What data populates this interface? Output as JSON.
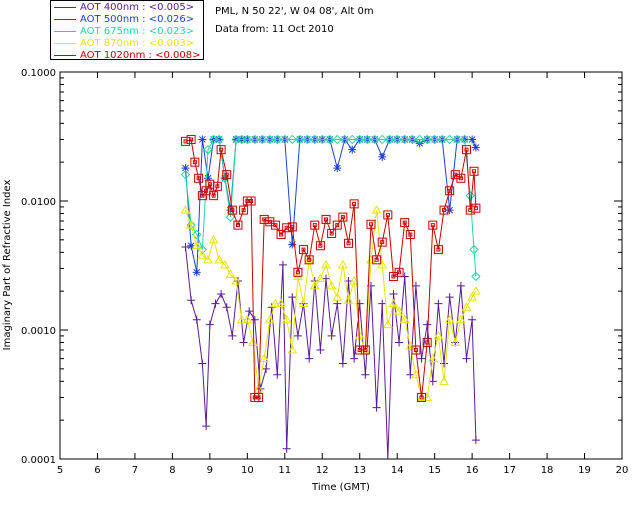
{
  "info": {
    "location": "PML, N 50 22', W 04 08', Alt 0m",
    "date": "Data from: 11 Oct 2010"
  },
  "legend": [
    {
      "label": "AOT  400nm : <0.005>",
      "color": "#5a1a9a"
    },
    {
      "label": "AOT  500nm : <0.026>",
      "color": "#1c3fd8"
    },
    {
      "label": "AOT  675nm : <0.023>",
      "color": "#22d6a0"
    },
    {
      "label": "AOT  870nm : <0.003>",
      "color": "#e6e600"
    },
    {
      "label": "AOT 1020nm : <0.008>",
      "color": "#cc0000"
    }
  ],
  "chart_data": {
    "type": "line",
    "title": "",
    "xlabel": "Time (GMT)",
    "ylabel": "Imaginary Part of Refractive Index",
    "xlim": [
      5,
      20
    ],
    "ylim": [
      0.0001,
      0.1
    ],
    "yscale": "log",
    "xticks": [
      "5",
      "6",
      "7",
      "8",
      "9",
      "10",
      "11",
      "12",
      "13",
      "14",
      "15",
      "16",
      "17",
      "18",
      "19",
      "20"
    ],
    "yticks": [
      "0.0001",
      "0.0010",
      "0.0100",
      "0.1000"
    ],
    "series": [
      {
        "name": "AOT 400nm",
        "color": "#5a1a9a",
        "marker": "plus",
        "x": [
          8.35,
          8.5,
          8.65,
          8.8,
          8.9,
          9.0,
          9.15,
          9.3,
          9.45,
          9.6,
          9.75,
          9.9,
          10.05,
          10.2,
          10.35,
          10.5,
          10.65,
          10.8,
          10.95,
          11.05,
          11.2,
          11.35,
          11.5,
          11.65,
          11.8,
          11.95,
          12.1,
          12.25,
          12.4,
          12.55,
          12.7,
          12.85,
          13.0,
          13.15,
          13.3,
          13.45,
          13.6,
          13.75,
          13.9,
          14.05,
          14.2,
          14.35,
          14.5,
          14.65,
          14.8,
          14.95,
          15.1,
          15.25,
          15.4,
          15.55,
          15.7,
          15.85,
          16.0,
          16.1
        ],
        "y": [
          0.0044,
          0.0017,
          0.0012,
          0.00055,
          0.00018,
          0.0011,
          0.0016,
          0.0019,
          0.0015,
          0.0009,
          0.0024,
          0.0008,
          0.0014,
          0.0012,
          0.00035,
          0.0005,
          0.0015,
          0.00045,
          0.0032,
          0.00012,
          0.0018,
          0.0009,
          0.0016,
          0.0006,
          0.0024,
          0.0007,
          0.0025,
          0.0009,
          0.0016,
          0.00055,
          0.0024,
          0.0006,
          0.0016,
          0.00045,
          0.0022,
          0.00025,
          0.0016,
          8e-05,
          0.0019,
          0.0008,
          0.0026,
          0.00045,
          0.0022,
          0.0006,
          0.0011,
          0.0004,
          0.0016,
          0.00055,
          0.0018,
          0.0008,
          0.0022,
          0.0006,
          0.0012,
          0.00014
        ]
      },
      {
        "name": "AOT 500nm",
        "color": "#1c3fd8",
        "marker": "asterisk",
        "x": [
          8.35,
          8.5,
          8.65,
          8.8,
          8.95,
          9.1,
          9.25,
          9.4,
          9.55,
          9.7,
          9.85,
          10.0,
          10.2,
          10.4,
          10.6,
          10.8,
          11.0,
          11.2,
          11.4,
          11.6,
          11.8,
          12.0,
          12.2,
          12.4,
          12.6,
          12.8,
          13.0,
          13.2,
          13.4,
          13.6,
          13.8,
          14.0,
          14.2,
          14.4,
          14.6,
          14.8,
          15.0,
          15.2,
          15.4,
          15.6,
          15.8,
          16.0,
          16.1
        ],
        "y": [
          0.018,
          0.0045,
          0.0028,
          0.03,
          0.015,
          0.03,
          0.03,
          0.015,
          0.0085,
          0.03,
          0.03,
          0.03,
          0.03,
          0.03,
          0.03,
          0.03,
          0.03,
          0.0046,
          0.03,
          0.03,
          0.03,
          0.03,
          0.03,
          0.018,
          0.03,
          0.025,
          0.03,
          0.03,
          0.03,
          0.022,
          0.03,
          0.03,
          0.03,
          0.03,
          0.028,
          0.03,
          0.03,
          0.03,
          0.0085,
          0.03,
          0.03,
          0.03,
          0.026
        ]
      },
      {
        "name": "AOT 675nm",
        "color": "#22d6a0",
        "marker": "diamond",
        "x": [
          8.35,
          8.5,
          8.65,
          8.8,
          8.95,
          9.1,
          9.25,
          9.4,
          9.55,
          9.7,
          9.85,
          10.0,
          10.2,
          10.4,
          10.6,
          10.8,
          11.0,
          11.2,
          11.4,
          11.6,
          11.8,
          12.0,
          12.2,
          12.4,
          12.6,
          12.8,
          13.0,
          13.2,
          13.4,
          13.6,
          13.8,
          14.0,
          14.2,
          14.4,
          14.6,
          14.8,
          15.0,
          15.2,
          15.4,
          15.6,
          15.8,
          15.95,
          16.05,
          16.1
        ],
        "y": [
          0.016,
          0.0065,
          0.0055,
          0.0042,
          0.025,
          0.03,
          0.03,
          0.015,
          0.0075,
          0.03,
          0.03,
          0.03,
          0.03,
          0.03,
          0.03,
          0.03,
          0.03,
          0.03,
          0.03,
          0.03,
          0.03,
          0.03,
          0.03,
          0.03,
          0.03,
          0.03,
          0.03,
          0.03,
          0.03,
          0.03,
          0.03,
          0.03,
          0.03,
          0.03,
          0.03,
          0.03,
          0.03,
          0.03,
          0.03,
          0.03,
          0.03,
          0.011,
          0.0042,
          0.0026
        ]
      },
      {
        "name": "AOT 870nm",
        "color": "#e6e600",
        "marker": "triangle",
        "x": [
          8.35,
          8.5,
          8.65,
          8.8,
          8.95,
          9.1,
          9.25,
          9.4,
          9.55,
          9.7,
          9.85,
          10.0,
          10.15,
          10.3,
          10.45,
          10.6,
          10.75,
          10.9,
          11.05,
          11.2,
          11.35,
          11.5,
          11.65,
          11.8,
          11.95,
          12.1,
          12.25,
          12.4,
          12.55,
          12.7,
          12.85,
          13.0,
          13.15,
          13.3,
          13.45,
          13.6,
          13.75,
          13.9,
          14.05,
          14.2,
          14.35,
          14.5,
          14.65,
          14.8,
          14.95,
          15.1,
          15.25,
          15.4,
          15.55,
          15.7,
          15.85,
          16.0,
          16.1
        ],
        "y": [
          0.0085,
          0.0065,
          0.0045,
          0.0038,
          0.0035,
          0.005,
          0.0035,
          0.0032,
          0.0027,
          0.0024,
          0.0012,
          0.0012,
          0.0008,
          0.00035,
          0.0006,
          0.0012,
          0.0016,
          0.0016,
          0.0012,
          0.0007,
          0.0026,
          0.0016,
          0.0035,
          0.0022,
          0.0025,
          0.0032,
          0.0022,
          0.0018,
          0.0032,
          0.0017,
          0.0024,
          0.0009,
          0.0007,
          0.0035,
          0.0085,
          0.0032,
          0.0011,
          0.0016,
          0.0014,
          0.0012,
          0.00075,
          0.00045,
          0.0003,
          0.0003,
          0.0006,
          0.0009,
          0.0004,
          0.0012,
          0.0008,
          0.0012,
          0.0015,
          0.0018,
          0.002
        ]
      },
      {
        "name": "AOT 1020nm",
        "color": "#cc0000",
        "marker": "square",
        "x": [
          8.35,
          8.5,
          8.6,
          8.7,
          8.8,
          8.9,
          9.0,
          9.1,
          9.2,
          9.3,
          9.45,
          9.6,
          9.75,
          9.9,
          10.0,
          10.1,
          10.2,
          10.3,
          10.45,
          10.6,
          10.75,
          10.9,
          11.05,
          11.2,
          11.35,
          11.5,
          11.65,
          11.8,
          11.95,
          12.1,
          12.25,
          12.4,
          12.55,
          12.7,
          12.85,
          13.0,
          13.15,
          13.3,
          13.45,
          13.6,
          13.75,
          13.9,
          14.05,
          14.2,
          14.35,
          14.5,
          14.65,
          14.8,
          14.95,
          15.1,
          15.25,
          15.4,
          15.55,
          15.7,
          15.85,
          15.95,
          16.05,
          16.1
        ],
        "y": [
          0.029,
          0.03,
          0.02,
          0.015,
          0.011,
          0.012,
          0.0135,
          0.011,
          0.013,
          0.025,
          0.016,
          0.0085,
          0.0065,
          0.0085,
          0.01,
          0.01,
          0.0003,
          0.0003,
          0.0072,
          0.0069,
          0.0065,
          0.0055,
          0.0062,
          0.0063,
          0.0028,
          0.0042,
          0.0035,
          0.0065,
          0.0045,
          0.0072,
          0.0056,
          0.0065,
          0.0075,
          0.0047,
          0.0095,
          0.0007,
          0.0007,
          0.0066,
          0.0035,
          0.0048,
          0.0078,
          0.0026,
          0.0028,
          0.0068,
          0.0055,
          0.0007,
          0.0003,
          0.0008,
          0.0065,
          0.0042,
          0.0085,
          0.012,
          0.016,
          0.015,
          0.025,
          0.0085,
          0.017,
          0.0088
        ]
      }
    ]
  }
}
